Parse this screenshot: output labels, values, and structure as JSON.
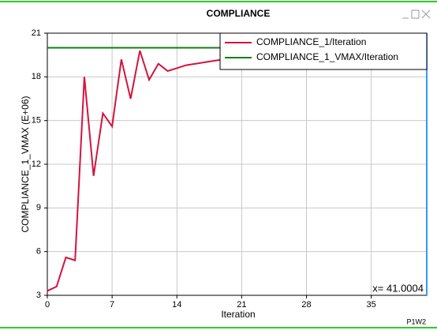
{
  "chart_data": {
    "type": "line",
    "title": "COMPLIANCE",
    "xlabel": "Iteration",
    "ylabel": "COMPLIANCE_1_VMAX (E+06)",
    "window_id": "P1W2",
    "cursor": {
      "label": "x= 41.0004",
      "x": 41.0004
    },
    "x": [
      0,
      1,
      2,
      3,
      4,
      5,
      6,
      7,
      8,
      9,
      10,
      11,
      12,
      13,
      14,
      15,
      16,
      17,
      18,
      19,
      20,
      21,
      22,
      23,
      24,
      25,
      26,
      27,
      28,
      29,
      30,
      31,
      32,
      33,
      34,
      35,
      36,
      37,
      38,
      39,
      40,
      41
    ],
    "series": [
      {
        "name": "COMPLIANCE_1/Iteration",
        "color": "#d4143c",
        "values": [
          3.3,
          3.6,
          5.6,
          5.4,
          18.0,
          11.2,
          15.5,
          14.6,
          19.2,
          16.5,
          19.8,
          17.8,
          18.9,
          18.4,
          18.6,
          18.8,
          18.9,
          19.0,
          19.1,
          19.2,
          19.2,
          19.3,
          19.4,
          19.4,
          19.5,
          19.5,
          19.6,
          19.6,
          19.6,
          19.7,
          19.7,
          19.7,
          19.8,
          19.8,
          19.8,
          19.8,
          19.9,
          19.9,
          19.9,
          19.9,
          20.0,
          20.0
        ]
      },
      {
        "name": "COMPLIANCE_1_VMAX/Iteration",
        "color": "#118011",
        "values": [
          20,
          20,
          20,
          20,
          20,
          20,
          20,
          20,
          20,
          20,
          20,
          20,
          20,
          20,
          20,
          20,
          20,
          20,
          20,
          20,
          20,
          20,
          20,
          20,
          20,
          20,
          20,
          20,
          20,
          20,
          20,
          20,
          20,
          20,
          20,
          20,
          20,
          20,
          20,
          20,
          20,
          20
        ]
      }
    ],
    "xlim": [
      0,
      41
    ],
    "xticks": [
      0,
      7,
      14,
      21,
      28,
      35
    ],
    "ylim": [
      3,
      21
    ],
    "yticks": [
      3,
      6,
      9,
      12,
      15,
      18,
      21
    ],
    "grid": true,
    "legend": "upper right"
  }
}
